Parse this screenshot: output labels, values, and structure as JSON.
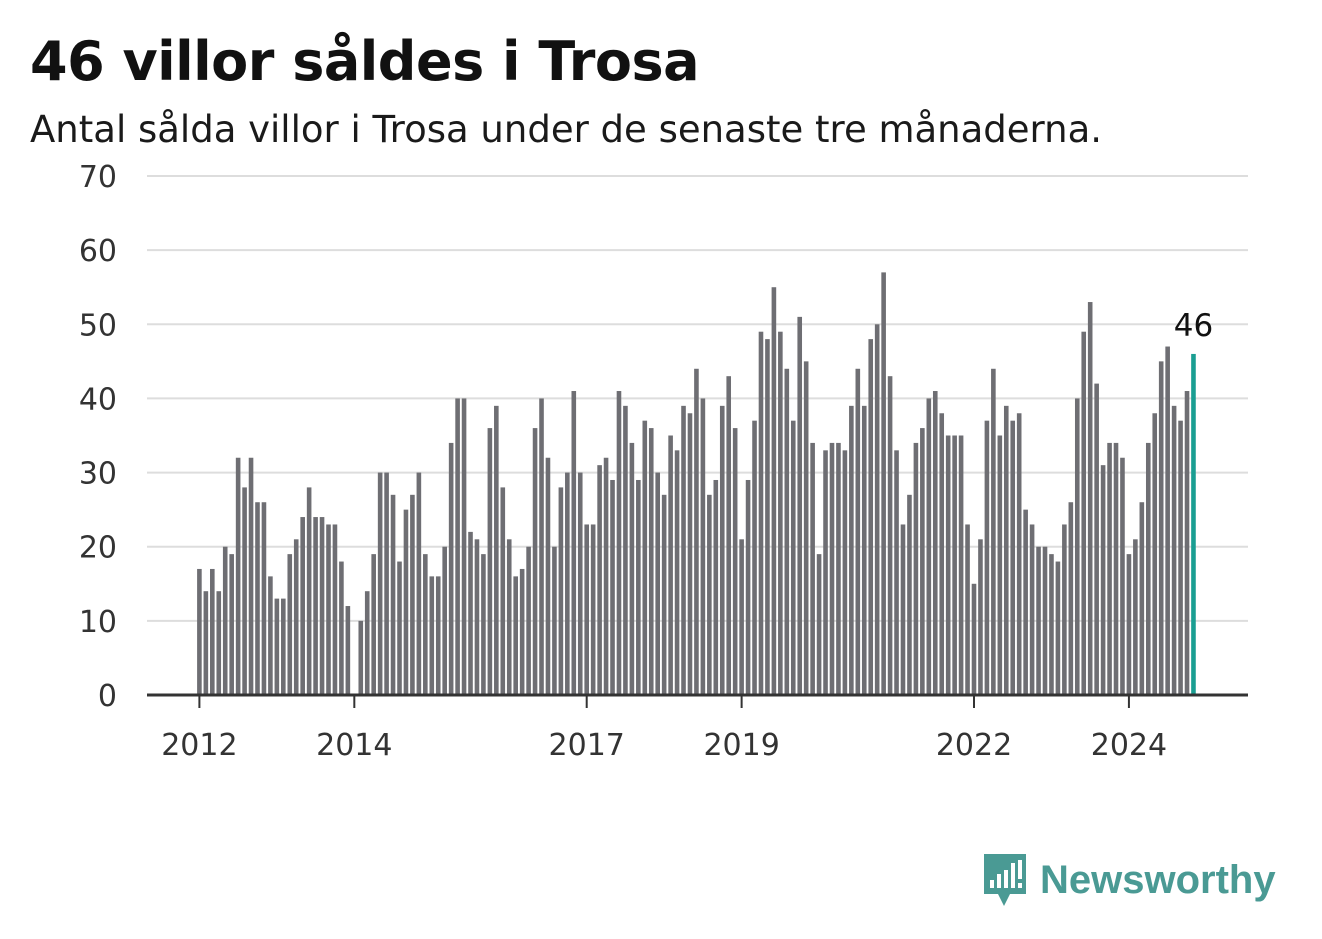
{
  "header": {
    "title": "46 villor såldes i Trosa",
    "subtitle": "Antal sålda villor i Trosa under de senaste tre månaderna."
  },
  "brand": {
    "name": "Newsworthy",
    "icon": "newsworthy-logo-icon",
    "color": "#4a9a94"
  },
  "colors": {
    "bar": "#6e6e73",
    "highlight": "#1a9e92",
    "grid": "#dddddd",
    "axis": "#333333"
  },
  "chart_data": {
    "type": "bar",
    "title": "46 villor såldes i Trosa",
    "subtitle": "Antal sålda villor i Trosa under de senaste tre månaderna.",
    "start": "2012-01",
    "frequency": "monthly",
    "xlabel": "",
    "ylabel": "",
    "ylim": [
      0,
      70
    ],
    "yticks": [
      0,
      10,
      20,
      30,
      40,
      50,
      60,
      70
    ],
    "xticks": [
      "2012",
      "2014",
      "2017",
      "2019",
      "2022",
      "2024"
    ],
    "grid": true,
    "legend": "none",
    "highlight_label": "46",
    "values": [
      17,
      14,
      17,
      14,
      20,
      19,
      32,
      28,
      32,
      26,
      26,
      16,
      13,
      13,
      19,
      21,
      24,
      28,
      24,
      24,
      23,
      23,
      18,
      12,
      null,
      10,
      14,
      19,
      30,
      30,
      27,
      18,
      25,
      27,
      30,
      19,
      16,
      16,
      20,
      34,
      40,
      40,
      22,
      21,
      19,
      36,
      39,
      28,
      21,
      16,
      17,
      20,
      36,
      40,
      32,
      20,
      28,
      30,
      41,
      30,
      23,
      23,
      31,
      32,
      29,
      41,
      39,
      34,
      29,
      37,
      36,
      30,
      27,
      35,
      33,
      39,
      38,
      44,
      40,
      27,
      29,
      39,
      43,
      36,
      21,
      29,
      37,
      49,
      48,
      55,
      49,
      44,
      37,
      51,
      45,
      34,
      19,
      33,
      34,
      34,
      33,
      39,
      44,
      39,
      48,
      50,
      57,
      43,
      33,
      23,
      27,
      34,
      36,
      40,
      41,
      38,
      35,
      35,
      35,
      23,
      15,
      21,
      37,
      44,
      35,
      39,
      37,
      38,
      25,
      23,
      20,
      20,
      19,
      18,
      23,
      26,
      40,
      49,
      53,
      42,
      31,
      34,
      34,
      32,
      19,
      21,
      26,
      34,
      38,
      45,
      47,
      39,
      37,
      41,
      46
    ]
  }
}
